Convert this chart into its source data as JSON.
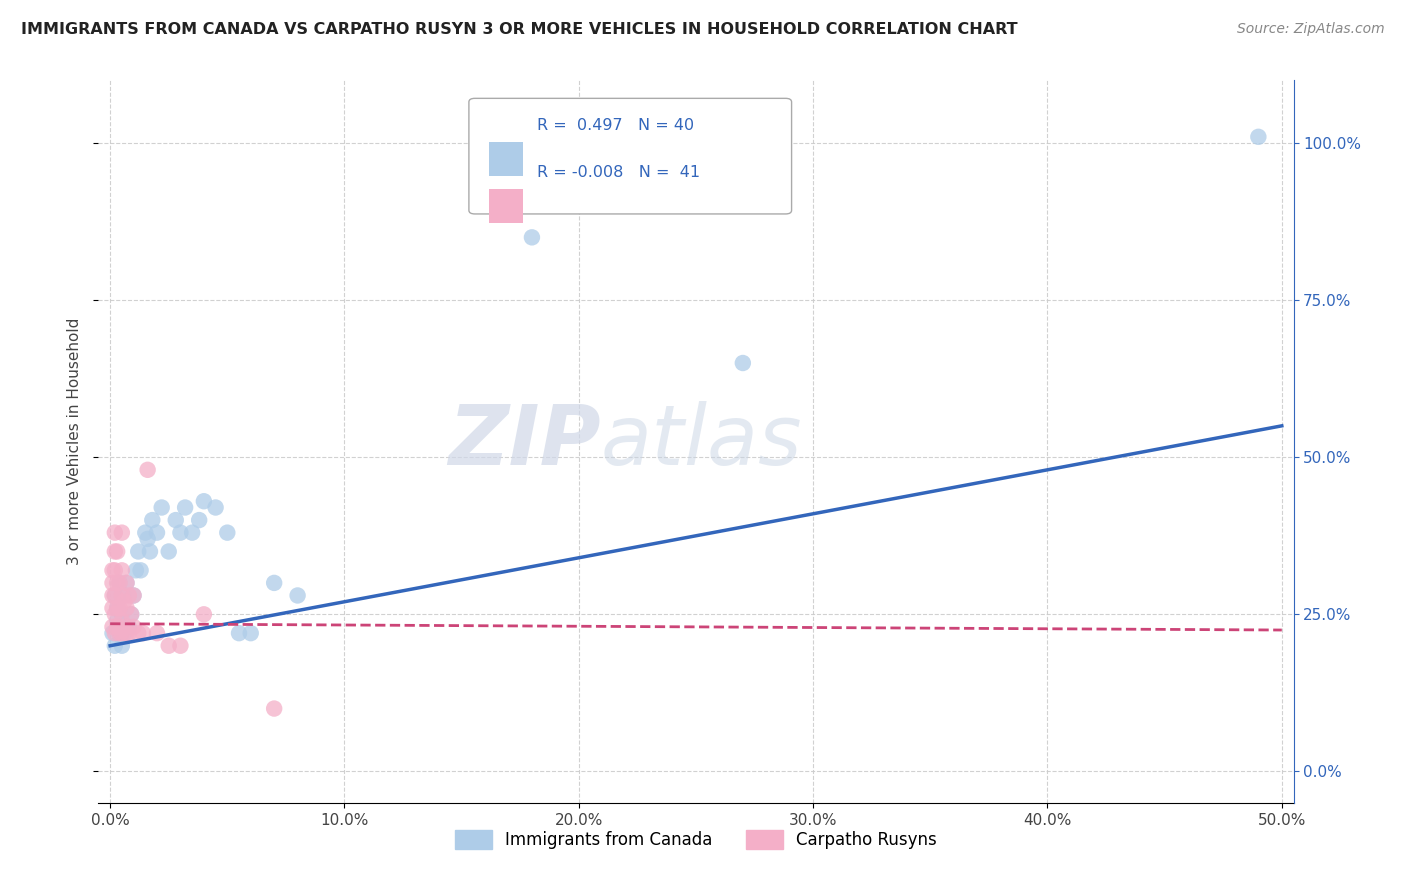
{
  "title": "IMMIGRANTS FROM CANADA VS CARPATHO RUSYN 3 OR MORE VEHICLES IN HOUSEHOLD CORRELATION CHART",
  "source": "Source: ZipAtlas.com",
  "ylabel": "3 or more Vehicles in Household",
  "xlim": [
    -0.005,
    0.505
  ],
  "ylim": [
    -0.05,
    1.1
  ],
  "r_canada": 0.497,
  "n_canada": 40,
  "r_rusyn": -0.008,
  "n_rusyn": 41,
  "legend_label_canada": "Immigrants from Canada",
  "legend_label_rusyn": "Carpatho Rusyns",
  "color_canada": "#aecce8",
  "color_rusyn": "#f4afc8",
  "line_color_canada": "#3366bb",
  "line_color_rusyn": "#cc4477",
  "watermark_zip": "ZIP",
  "watermark_atlas": "atlas",
  "background_color": "#ffffff",
  "canada_scatter_x": [
    0.001,
    0.002,
    0.002,
    0.003,
    0.003,
    0.004,
    0.004,
    0.005,
    0.005,
    0.006,
    0.006,
    0.007,
    0.008,
    0.009,
    0.01,
    0.011,
    0.012,
    0.013,
    0.015,
    0.016,
    0.017,
    0.018,
    0.02,
    0.022,
    0.025,
    0.028,
    0.03,
    0.032,
    0.035,
    0.038,
    0.04,
    0.045,
    0.05,
    0.055,
    0.06,
    0.07,
    0.08,
    0.18,
    0.27,
    0.49
  ],
  "canada_scatter_y": [
    0.22,
    0.2,
    0.28,
    0.24,
    0.26,
    0.22,
    0.3,
    0.2,
    0.25,
    0.22,
    0.28,
    0.3,
    0.23,
    0.25,
    0.28,
    0.32,
    0.35,
    0.32,
    0.38,
    0.37,
    0.35,
    0.4,
    0.38,
    0.42,
    0.35,
    0.4,
    0.38,
    0.42,
    0.38,
    0.4,
    0.43,
    0.42,
    0.38,
    0.22,
    0.22,
    0.3,
    0.28,
    0.85,
    0.65,
    1.01
  ],
  "rusyn_scatter_x": [
    0.001,
    0.001,
    0.001,
    0.001,
    0.001,
    0.002,
    0.002,
    0.002,
    0.002,
    0.002,
    0.002,
    0.003,
    0.003,
    0.003,
    0.003,
    0.004,
    0.004,
    0.004,
    0.005,
    0.005,
    0.005,
    0.005,
    0.005,
    0.006,
    0.006,
    0.007,
    0.007,
    0.007,
    0.008,
    0.008,
    0.009,
    0.01,
    0.01,
    0.012,
    0.014,
    0.016,
    0.02,
    0.025,
    0.03,
    0.04,
    0.07
  ],
  "rusyn_scatter_y": [
    0.23,
    0.26,
    0.28,
    0.3,
    0.32,
    0.22,
    0.25,
    0.28,
    0.32,
    0.35,
    0.38,
    0.23,
    0.26,
    0.3,
    0.35,
    0.22,
    0.26,
    0.3,
    0.22,
    0.24,
    0.28,
    0.32,
    0.38,
    0.23,
    0.27,
    0.22,
    0.26,
    0.3,
    0.22,
    0.28,
    0.25,
    0.23,
    0.28,
    0.22,
    0.22,
    0.48,
    0.22,
    0.2,
    0.2,
    0.25,
    0.1
  ],
  "line_canada_x0": 0.0,
  "line_canada_x1": 0.5,
  "line_canada_y0": 0.2,
  "line_canada_y1": 0.55,
  "line_rusyn_x0": 0.0,
  "line_rusyn_x1": 0.5,
  "line_rusyn_y0": 0.235,
  "line_rusyn_y1": 0.225
}
